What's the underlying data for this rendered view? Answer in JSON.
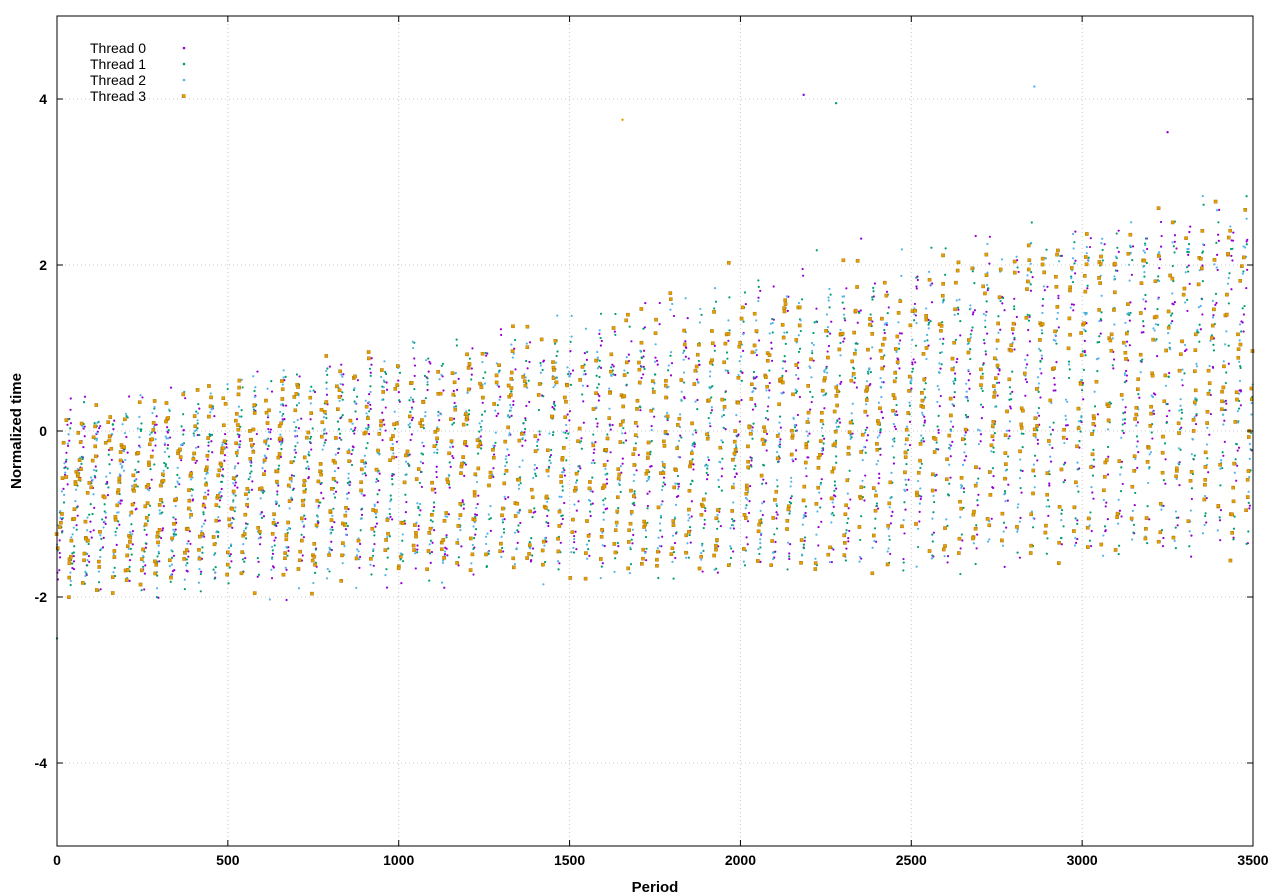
{
  "chart_data": {
    "type": "scatter",
    "xlabel": "Period",
    "ylabel": "Normalized time",
    "xlim": [
      0,
      3500
    ],
    "ylim": [
      -5,
      5
    ],
    "xticks": [
      0,
      500,
      1000,
      1500,
      2000,
      2500,
      3000,
      3500
    ],
    "yticks": [
      -4,
      -2,
      0,
      2,
      4
    ],
    "grid": true,
    "legend_position": "top-left",
    "series": [
      {
        "name": "Thread 0",
        "color": "#9400d3",
        "marker": "dot"
      },
      {
        "name": "Thread 1",
        "color": "#009e73",
        "marker": "dot"
      },
      {
        "name": "Thread 2",
        "color": "#56b4e9",
        "marker": "dot"
      },
      {
        "name": "Thread 3",
        "color": "#e69f00",
        "marker": "square"
      }
    ],
    "pattern": {
      "description_kind": "sawtooth",
      "period_length": 42,
      "low_start": -1.9,
      "low_end": -1.45,
      "high_start": 0.1,
      "high_end": 2.6,
      "noise": 0.35,
      "spikes": [
        {
          "x": 2185,
          "y": 4.05
        },
        {
          "x": 2280,
          "y": 3.95
        },
        {
          "x": 2860,
          "y": 4.15
        },
        {
          "x": 1655,
          "y": 3.75
        },
        {
          "x": 3250,
          "y": 3.6
        },
        {
          "x": 0,
          "y": -2.5
        }
      ]
    }
  }
}
